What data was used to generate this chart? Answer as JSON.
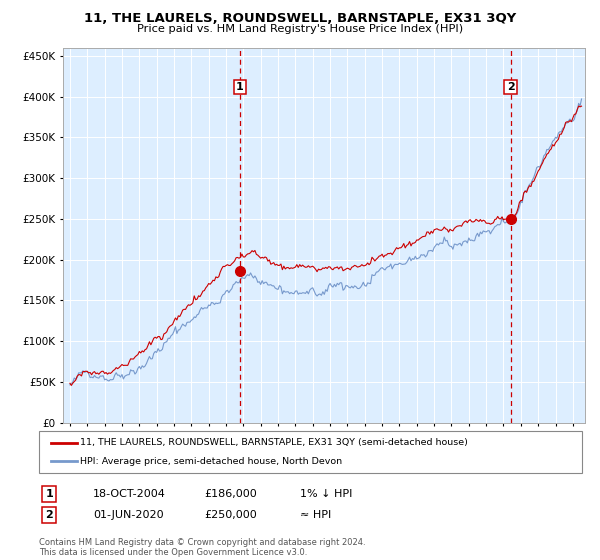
{
  "title": "11, THE LAURELS, ROUNDSWELL, BARNSTAPLE, EX31 3QY",
  "subtitle": "Price paid vs. HM Land Registry's House Price Index (HPI)",
  "background_color": "#ffffff",
  "plot_bg_color": "#ddeeff",
  "hpi_color": "#7799cc",
  "price_color": "#cc0000",
  "marker_color": "#cc0000",
  "vline_color": "#cc0000",
  "grid_color": "#ffffff",
  "ylim": [
    0,
    460000
  ],
  "yticks": [
    0,
    50000,
    100000,
    150000,
    200000,
    250000,
    300000,
    350000,
    400000,
    450000
  ],
  "x_start_year": 1995,
  "x_end_year": 2024,
  "purchase1_year": 2004.8,
  "purchase1_price": 186000,
  "purchase2_year": 2020.42,
  "purchase2_price": 250000,
  "legend_line1": "11, THE LAURELS, ROUNDSWELL, BARNSTAPLE, EX31 3QY (semi-detached house)",
  "legend_line2": "HPI: Average price, semi-detached house, North Devon",
  "table_row1_num": "1",
  "table_row1_date": "18-OCT-2004",
  "table_row1_price": "£186,000",
  "table_row1_hpi": "1% ↓ HPI",
  "table_row2_num": "2",
  "table_row2_date": "01-JUN-2020",
  "table_row2_price": "£250,000",
  "table_row2_hpi": "≈ HPI",
  "footnote": "Contains HM Land Registry data © Crown copyright and database right 2024.\nThis data is licensed under the Open Government Licence v3.0."
}
